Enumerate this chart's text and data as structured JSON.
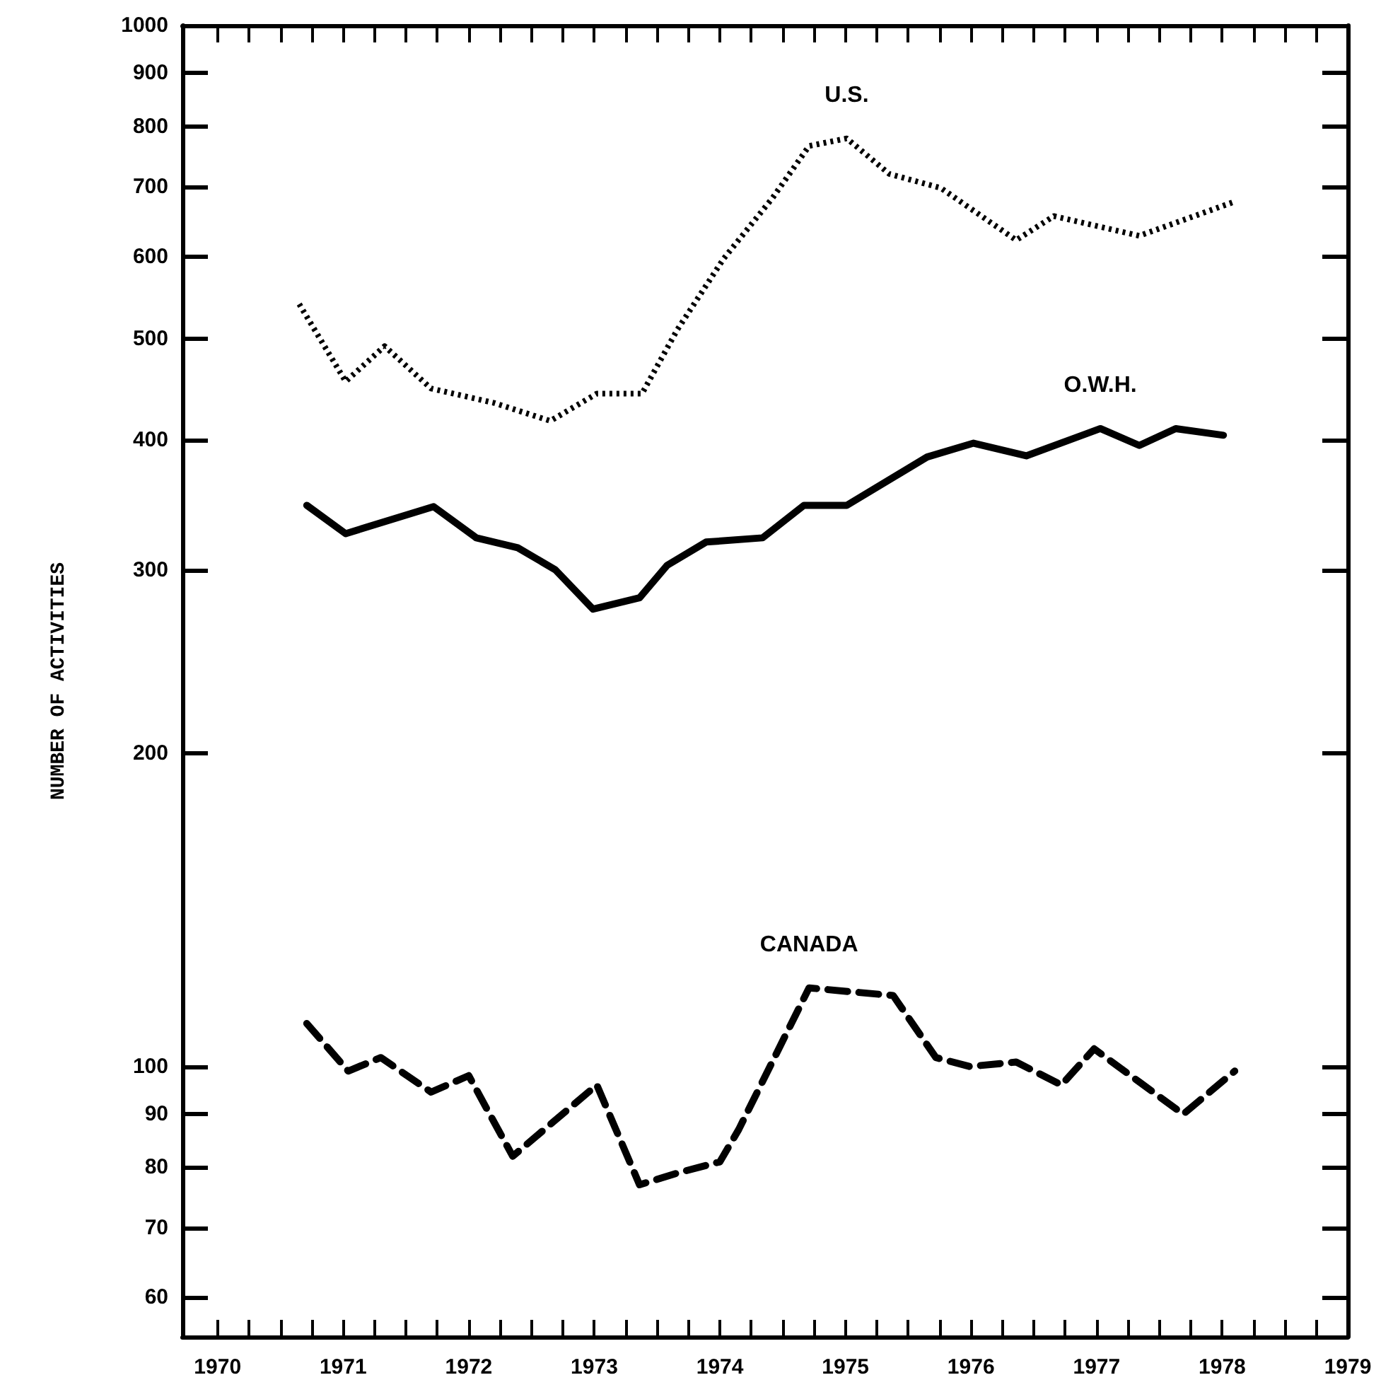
{
  "chart_data": {
    "type": "line",
    "ylabel": "NUMBER OF ACTIVITIES",
    "log": "y",
    "xlim": [
      1969.72,
      1979
    ],
    "xticks": [
      1970,
      {
        "value": 1970.25,
        "label": null
      },
      {
        "value": 1970.5,
        "label": null
      },
      {
        "value": 1970.75,
        "label": null
      },
      1971,
      {
        "value": 1971.25,
        "label": null
      },
      {
        "value": 1971.5,
        "label": null
      },
      {
        "value": 1971.75,
        "label": null
      },
      1972,
      {
        "value": 1972.25,
        "label": null
      },
      {
        "value": 1972.5,
        "label": null
      },
      {
        "value": 1972.75,
        "label": null
      },
      1973,
      {
        "value": 1973.25,
        "label": null
      },
      {
        "value": 1973.5,
        "label": null
      },
      {
        "value": 1973.75,
        "label": null
      },
      1974,
      {
        "value": 1974.25,
        "label": null
      },
      {
        "value": 1974.5,
        "label": null
      },
      {
        "value": 1974.75,
        "label": null
      },
      1975,
      {
        "value": 1975.25,
        "label": null
      },
      {
        "value": 1975.5,
        "label": null
      },
      {
        "value": 1975.75,
        "label": null
      },
      1976,
      {
        "value": 1976.25,
        "label": null
      },
      {
        "value": 1976.5,
        "label": null
      },
      {
        "value": 1976.75,
        "label": null
      },
      1977,
      {
        "value": 1977.25,
        "label": null
      },
      {
        "value": 1977.5,
        "label": null
      },
      {
        "value": 1977.75,
        "label": null
      },
      1978,
      {
        "value": 1978.25,
        "label": null
      },
      {
        "value": 1978.5,
        "label": null
      },
      {
        "value": 1978.75,
        "label": null
      },
      1979
    ],
    "ylim": [
      55,
      1000
    ],
    "yticks": [
      60,
      70,
      80,
      90,
      100,
      200,
      300,
      400,
      500,
      600,
      700,
      800,
      900,
      1000
    ],
    "series": [
      {
        "name": "U.S.",
        "color": "#000000",
        "line_style": "dotted",
        "x": [
          1970.65,
          1971.02,
          1971.33,
          1971.7,
          1972.2,
          1972.65,
          1973.02,
          1973.38,
          1973.66,
          1974.03,
          1974.42,
          1974.71,
          1975.01,
          1975.35,
          1975.76,
          1976.36,
          1976.66,
          1977.34,
          1978.08
        ],
        "values": [
          540,
          455,
          492,
          448,
          434,
          417,
          443,
          443,
          510,
          597,
          683,
          766,
          779,
          720,
          698,
          622,
          656,
          628,
          676
        ]
      },
      {
        "name": "O.W.H.",
        "color": "#000000",
        "line_style": "solid",
        "x": [
          1970.71,
          1971.02,
          1971.72,
          1972.06,
          1972.39,
          1972.69,
          1972.99,
          1973.36,
          1973.58,
          1973.89,
          1974.34,
          1974.67,
          1975.01,
          1975.65,
          1976.02,
          1976.44,
          1977.03,
          1977.34,
          1977.63,
          1978.01
        ],
        "values": [
          346,
          325,
          345,
          322,
          315,
          300,
          275,
          282,
          303,
          319,
          322,
          346,
          346,
          385,
          397,
          386,
          410,
          395,
          410,
          404
        ]
      },
      {
        "name": "CANADA",
        "color": "#000000",
        "line_style": "dashed",
        "x": [
          1970.71,
          1971.04,
          1971.3,
          1971.7,
          1972.0,
          1972.35,
          1973.02,
          1973.36,
          1973.66,
          1974.0,
          1974.15,
          1974.71,
          1975.04,
          1975.38,
          1975.72,
          1975.99,
          1976.36,
          1976.72,
          1976.98,
          1977.69,
          1978.1
        ],
        "values": [
          110,
          99,
          102,
          94.5,
          98,
          82,
          96,
          77,
          79,
          81,
          87,
          119,
          118,
          117,
          102,
          100,
          101,
          96,
          104,
          90,
          99
        ]
      }
    ]
  }
}
